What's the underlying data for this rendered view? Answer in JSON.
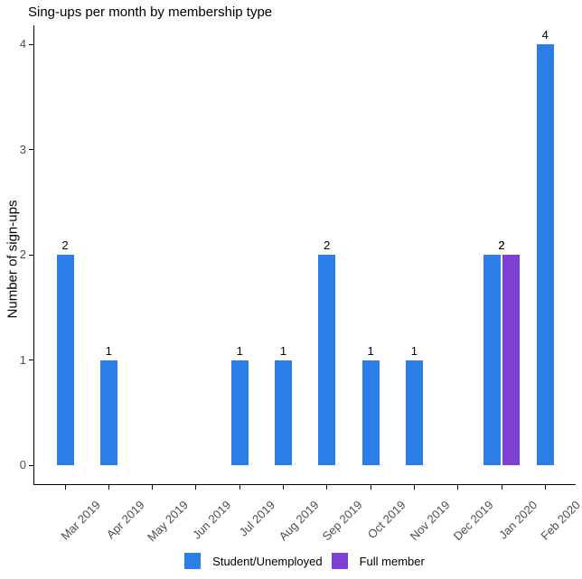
{
  "title": "Sing-ups per month by membership type",
  "y_axis": {
    "label": "Number of sign-ups",
    "tick_labels": [
      "0",
      "1",
      "2",
      "3",
      "4"
    ]
  },
  "legend": {
    "items": [
      {
        "label": "Student/Unemployed",
        "color": "#2b7ee7"
      },
      {
        "label": "Full member",
        "color": "#7d3fd4"
      }
    ]
  },
  "chart_data": {
    "type": "bar",
    "title": "Sing-ups per month by membership type",
    "xlabel": "",
    "ylabel": "Number of sign-ups",
    "ylim": [
      0,
      4
    ],
    "yticks": [
      0,
      1,
      2,
      3,
      4
    ],
    "grid": false,
    "legend_position": "bottom",
    "bar_value_labels": true,
    "categories": [
      "Mar 2019",
      "Apr 2019",
      "May 2019",
      "Jun 2019",
      "Jul 2019",
      "Aug 2019",
      "Sep 2019",
      "Oct 2019",
      "Nov 2019",
      "Dec 2019",
      "Jan 2020",
      "Feb 2020"
    ],
    "series": [
      {
        "name": "Student/Unemployed",
        "color": "#2b7ee7",
        "values": [
          2,
          1,
          0,
          0,
          1,
          1,
          2,
          1,
          1,
          0,
          2,
          4
        ]
      },
      {
        "name": "Full member",
        "color": "#7d3fd4",
        "values": [
          0,
          0,
          0,
          0,
          0,
          0,
          0,
          0,
          0,
          0,
          2,
          0
        ]
      }
    ]
  }
}
